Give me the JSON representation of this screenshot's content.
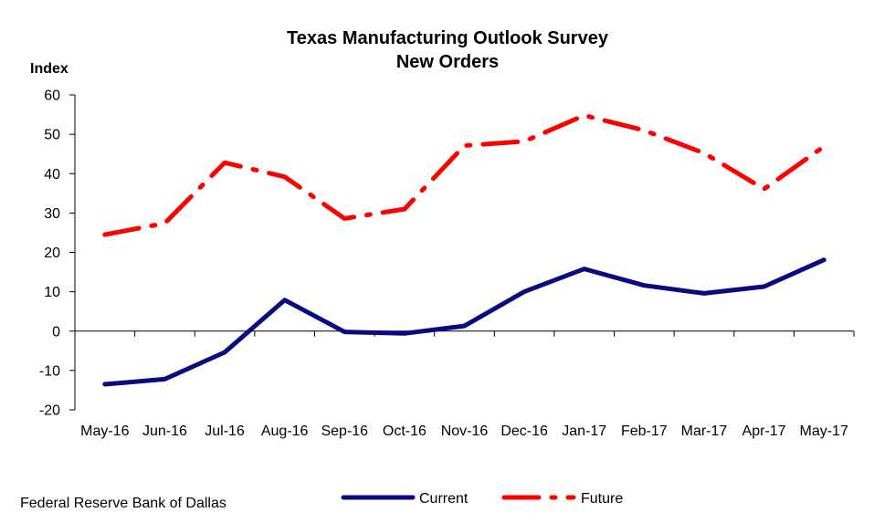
{
  "source_note": "Federal Reserve Bank of Dallas",
  "chart_data": {
    "type": "line",
    "title": "Texas Manufacturing Outlook Survey",
    "subtitle": "New Orders",
    "ylabel": "Index",
    "xlabel": "",
    "ylim": [
      -20,
      60
    ],
    "yticks": [
      -20,
      -10,
      0,
      10,
      20,
      30,
      40,
      50,
      60
    ],
    "categories": [
      "May-16",
      "Jun-16",
      "Jul-16",
      "Aug-16",
      "Sep-16",
      "Oct-16",
      "Nov-16",
      "Dec-16",
      "Jan-17",
      "Feb-17",
      "Mar-17",
      "Apr-17",
      "May-17"
    ],
    "series": [
      {
        "name": "Current",
        "color": "#0a0a80",
        "style": "solid",
        "values": [
          -13.5,
          -12.2,
          -5.4,
          7.9,
          -0.2,
          -0.6,
          1.3,
          10,
          15.8,
          11.6,
          9.6,
          11.3,
          18.1
        ]
      },
      {
        "name": "Future",
        "color": "#ff0000",
        "style": "dash-dot",
        "values": [
          24.5,
          27.4,
          42.8,
          39.2,
          28.6,
          31,
          47.1,
          48.2,
          54.8,
          51,
          45.2,
          36.1,
          46.9
        ]
      }
    ],
    "grid": false,
    "legend_position": "bottom"
  }
}
